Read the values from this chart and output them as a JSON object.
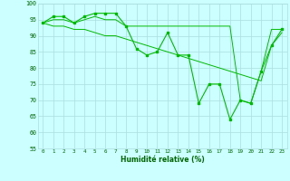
{
  "series1": {
    "x": [
      0,
      1,
      2,
      3,
      4,
      5,
      6,
      7,
      8,
      9,
      10,
      11,
      12,
      13,
      14,
      15,
      16,
      17,
      18,
      19,
      20,
      21,
      22,
      23
    ],
    "y": [
      94,
      96,
      96,
      94,
      96,
      97,
      97,
      97,
      93,
      86,
      84,
      85,
      91,
      84,
      84,
      69,
      75,
      75,
      64,
      70,
      69,
      79,
      87,
      92
    ]
  },
  "series2": {
    "x": [
      0,
      1,
      2,
      3,
      4,
      5,
      6,
      7,
      8,
      9,
      10,
      11,
      12,
      13,
      14,
      15,
      16,
      17,
      18,
      19,
      20,
      21,
      22,
      23
    ],
    "y": [
      94,
      93,
      93,
      92,
      92,
      91,
      90,
      90,
      89,
      88,
      87,
      86,
      85,
      84,
      83,
      82,
      81,
      80,
      79,
      78,
      77,
      76,
      87,
      91
    ]
  },
  "series3": {
    "x": [
      0,
      1,
      2,
      3,
      4,
      5,
      6,
      7,
      8,
      9,
      10,
      11,
      12,
      13,
      14,
      15,
      16,
      17,
      18,
      19,
      20,
      21,
      22,
      23
    ],
    "y": [
      94,
      95,
      95,
      94,
      95,
      96,
      95,
      95,
      93,
      93,
      93,
      93,
      93,
      93,
      93,
      93,
      93,
      93,
      93,
      70,
      69,
      79,
      92,
      92
    ]
  },
  "line_color": "#00bb00",
  "bg_color": "#ccffff",
  "grid_color": "#aadddd",
  "xlabel": "Humidité relative (%)",
  "ylim": [
    55,
    100
  ],
  "xlim": [
    -0.5,
    23.5
  ],
  "yticks": [
    55,
    60,
    65,
    70,
    75,
    80,
    85,
    90,
    95,
    100
  ],
  "xticks": [
    0,
    1,
    2,
    3,
    4,
    5,
    6,
    7,
    8,
    9,
    10,
    11,
    12,
    13,
    14,
    15,
    16,
    17,
    18,
    19,
    20,
    21,
    22,
    23
  ]
}
